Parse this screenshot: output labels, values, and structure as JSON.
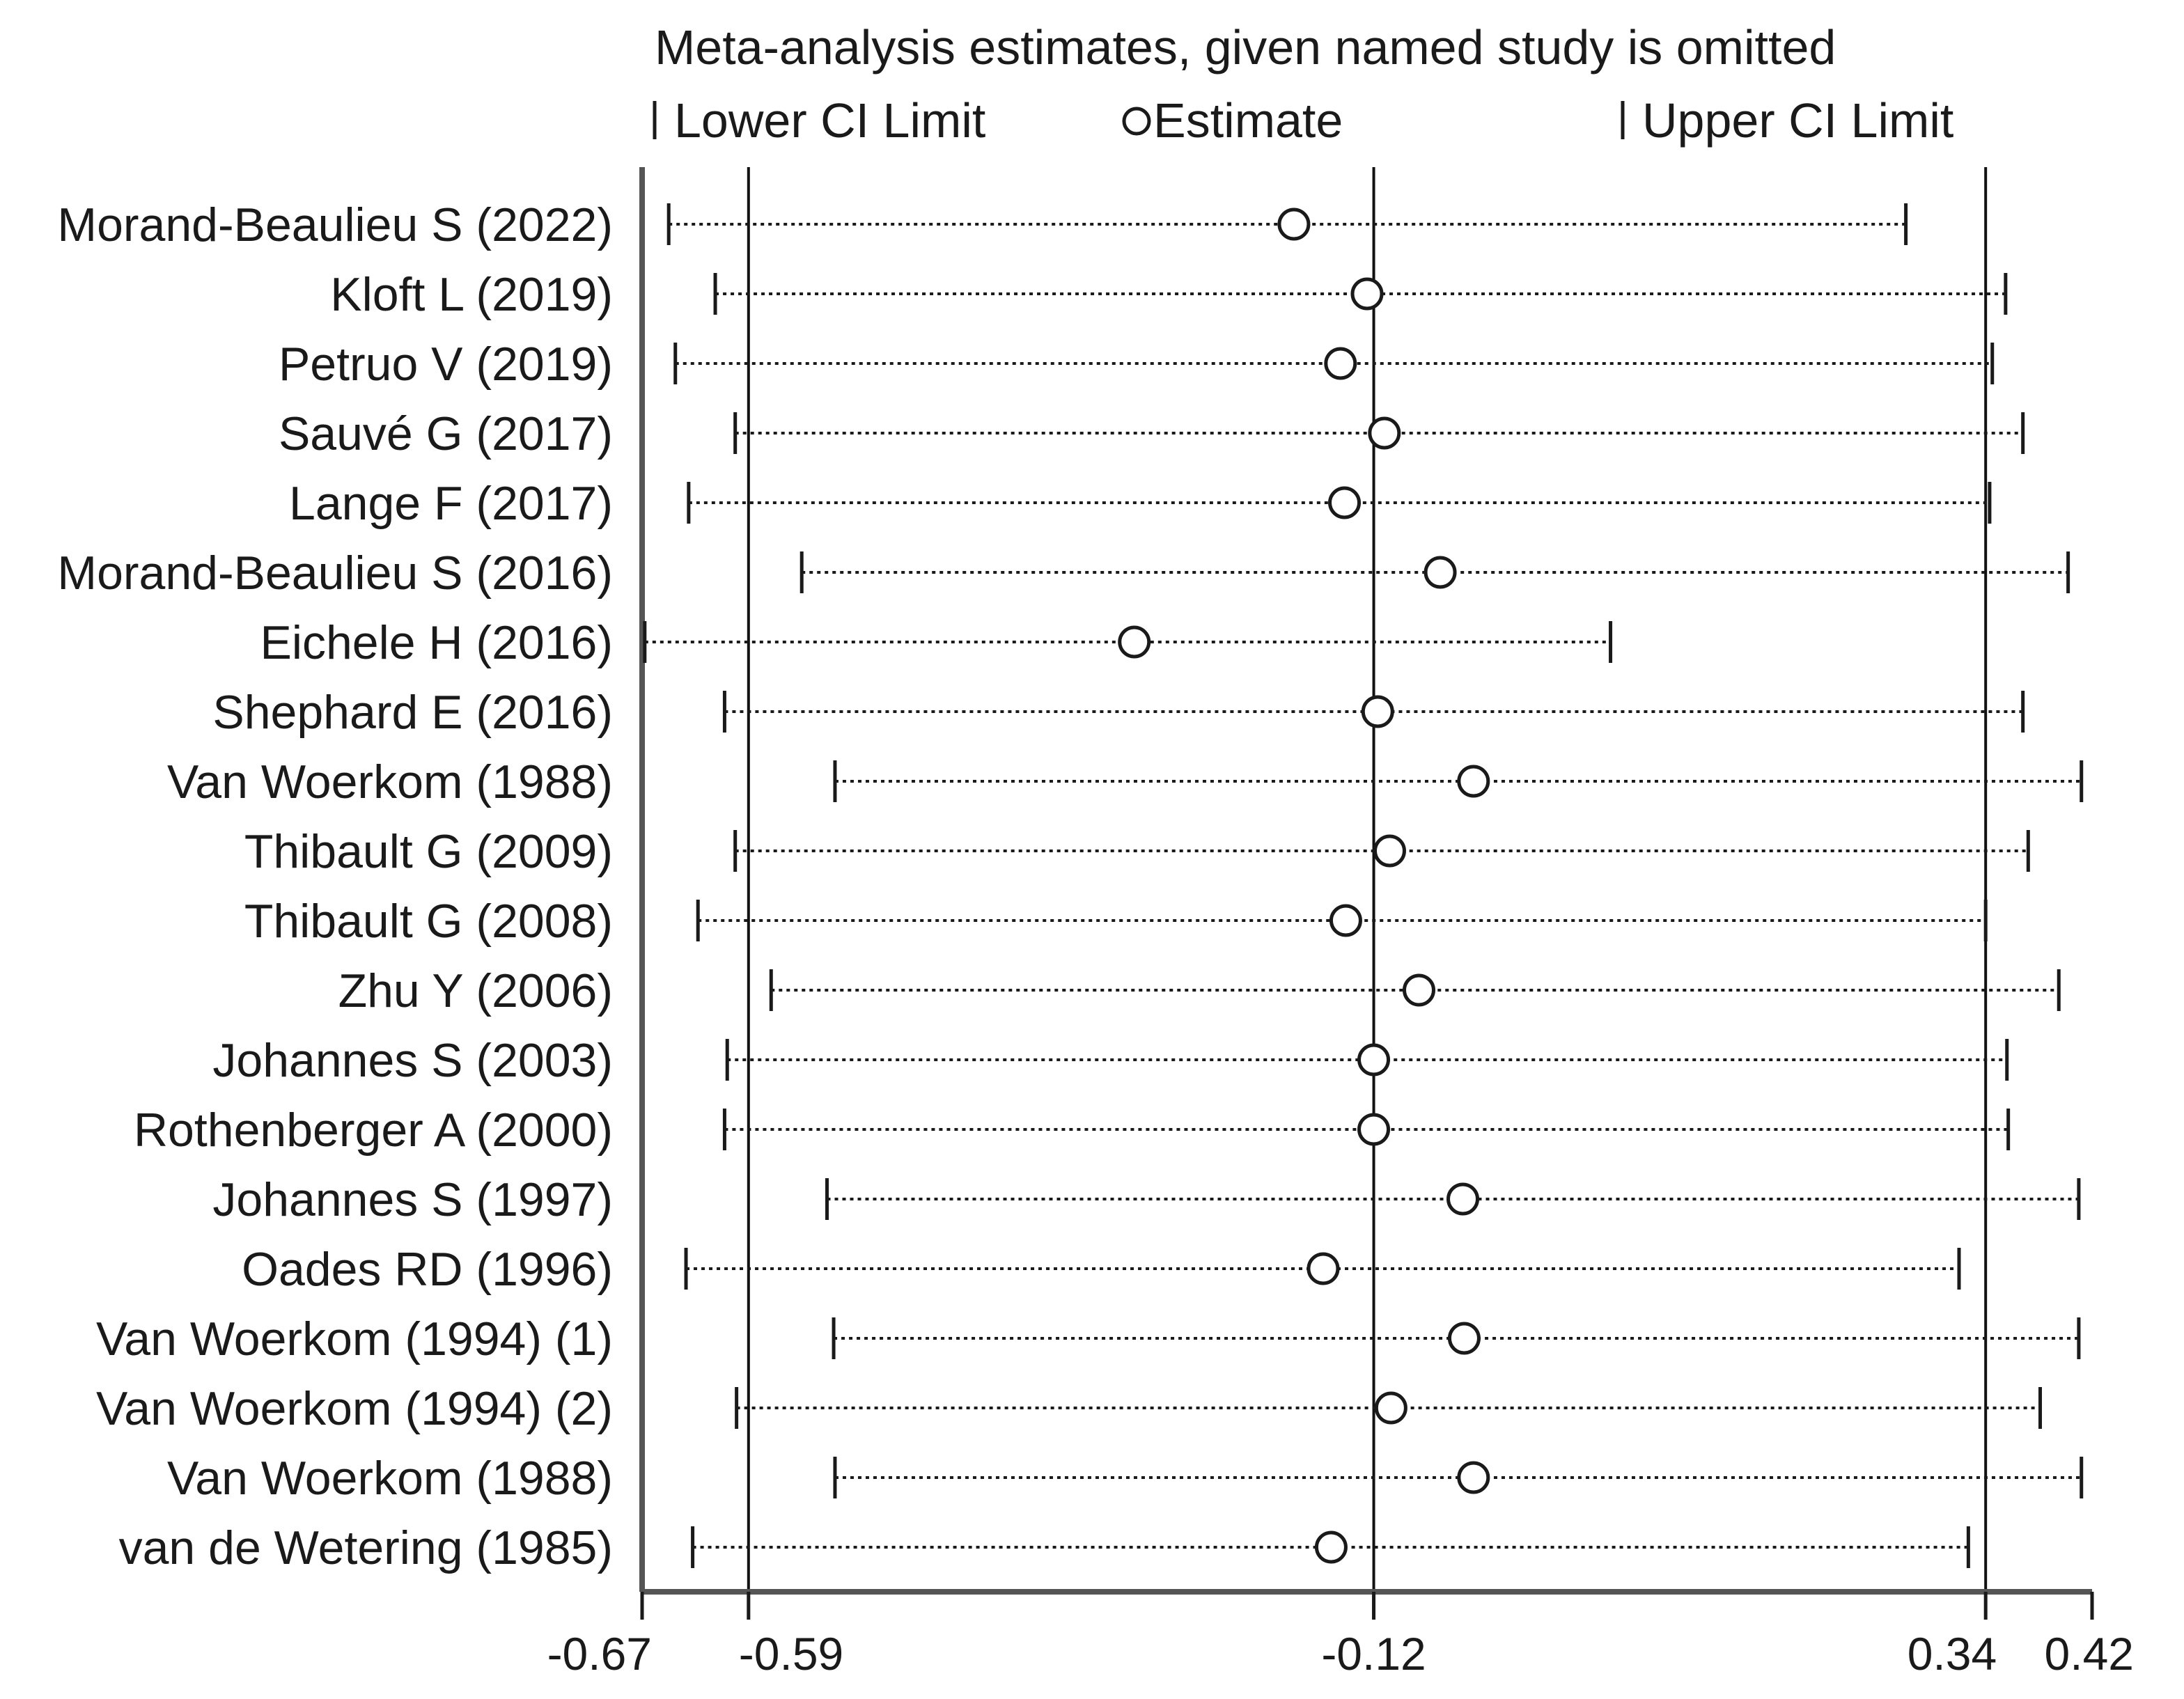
{
  "chart_data": {
    "type": "forest",
    "title": "Meta-analysis estimates, given named study is omitted",
    "legend": {
      "lower": "Lower CI Limit",
      "estimate": "Estimate",
      "upper": "Upper CI Limit"
    },
    "xlim": [
      -0.67,
      0.42
    ],
    "ticks": [
      {
        "value": -0.67,
        "label": "-0.67"
      },
      {
        "value": -0.59,
        "label": "-0.59"
      },
      {
        "value": -0.12,
        "label": "-0.12"
      },
      {
        "value": 0.34,
        "label": "0.34"
      },
      {
        "value": 0.42,
        "label": "0.42"
      }
    ],
    "reference_lines": [
      -0.59,
      -0.12,
      0.34
    ],
    "studies": [
      {
        "label": "Morand-Beaulieu S  (2022)",
        "lower": -0.65,
        "estimate": -0.18,
        "upper": 0.28
      },
      {
        "label": "Kloft L (2019)",
        "lower": -0.615,
        "estimate": -0.125,
        "upper": 0.355
      },
      {
        "label": "Petruo V (2019)",
        "lower": -0.645,
        "estimate": -0.145,
        "upper": 0.345
      },
      {
        "label": "Sauvé G (2017)",
        "lower": -0.6,
        "estimate": -0.112,
        "upper": 0.368
      },
      {
        "label": "Lange F (2017)",
        "lower": -0.635,
        "estimate": -0.142,
        "upper": 0.343
      },
      {
        "label": "Morand-Beaulieu S (2016)",
        "lower": -0.55,
        "estimate": -0.07,
        "upper": 0.402
      },
      {
        "label": "Eichele H (2016)",
        "lower": -0.668,
        "estimate": -0.3,
        "upper": 0.058
      },
      {
        "label": "Shephard E (2016)",
        "lower": -0.608,
        "estimate": -0.117,
        "upper": 0.368
      },
      {
        "label": "Van Woerkom  (1988)",
        "lower": -0.525,
        "estimate": -0.045,
        "upper": 0.412
      },
      {
        "label": "Thibault G (2009)",
        "lower": -0.6,
        "estimate": -0.108,
        "upper": 0.372
      },
      {
        "label": "Thibault G (2008)",
        "lower": -0.628,
        "estimate": -0.141,
        "upper": 0.34
      },
      {
        "label": "Zhu Y (2006)",
        "lower": -0.573,
        "estimate": -0.086,
        "upper": 0.395
      },
      {
        "label": "Johannes S (2003)",
        "lower": -0.606,
        "estimate": -0.12,
        "upper": 0.356
      },
      {
        "label": "Rothenberger A (2000)",
        "lower": -0.608,
        "estimate": -0.12,
        "upper": 0.357
      },
      {
        "label": "Johannes S (1997)",
        "lower": -0.531,
        "estimate": -0.053,
        "upper": 0.41
      },
      {
        "label": "Oades RD (1996)",
        "lower": -0.637,
        "estimate": -0.158,
        "upper": 0.32
      },
      {
        "label": "Van Woerkom (1994) (1)",
        "lower": -0.526,
        "estimate": -0.052,
        "upper": 0.41
      },
      {
        "label": "Van Woerkom (1994) (2)",
        "lower": -0.599,
        "estimate": -0.107,
        "upper": 0.381
      },
      {
        "label": "Van Woerkom (1988)",
        "lower": -0.525,
        "estimate": -0.045,
        "upper": 0.412
      },
      {
        "label": "van de Wetering (1985)",
        "lower": -0.632,
        "estimate": -0.152,
        "upper": 0.327
      }
    ]
  }
}
